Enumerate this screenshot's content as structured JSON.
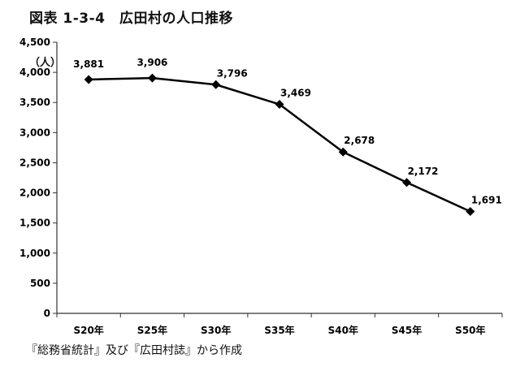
{
  "title": "図表 1-3-4　広田村の人口推移",
  "unit_label": "（人）",
  "caption": "『総務省統計』及び『広田村誌』から作成",
  "chart_data": {
    "type": "line",
    "title": "図表 1-3-4　広田村の人口推移",
    "xlabel": "",
    "ylabel": "（人）",
    "categories": [
      "S20年",
      "S25年",
      "S30年",
      "S35年",
      "S40年",
      "S45年",
      "S50年"
    ],
    "series": [
      {
        "values": [
          3881,
          3906,
          3796,
          3469,
          2678,
          2172,
          1691
        ],
        "data_labels": [
          "3,881",
          "3,906",
          "3,796",
          "3,469",
          "2,678",
          "2,172",
          "1,691"
        ]
      }
    ],
    "ylim": [
      0,
      4500
    ],
    "yticks": [
      0,
      500,
      1000,
      1500,
      2000,
      2500,
      3000,
      3500,
      4000,
      4500
    ],
    "ytick_labels": [
      "0",
      "500",
      "1,000",
      "1,500",
      "2,000",
      "2,500",
      "3,000",
      "3,500",
      "4,000",
      "4,500"
    ],
    "grid": false,
    "legend": "none",
    "marker": "diamond",
    "line_color": "#000000"
  }
}
